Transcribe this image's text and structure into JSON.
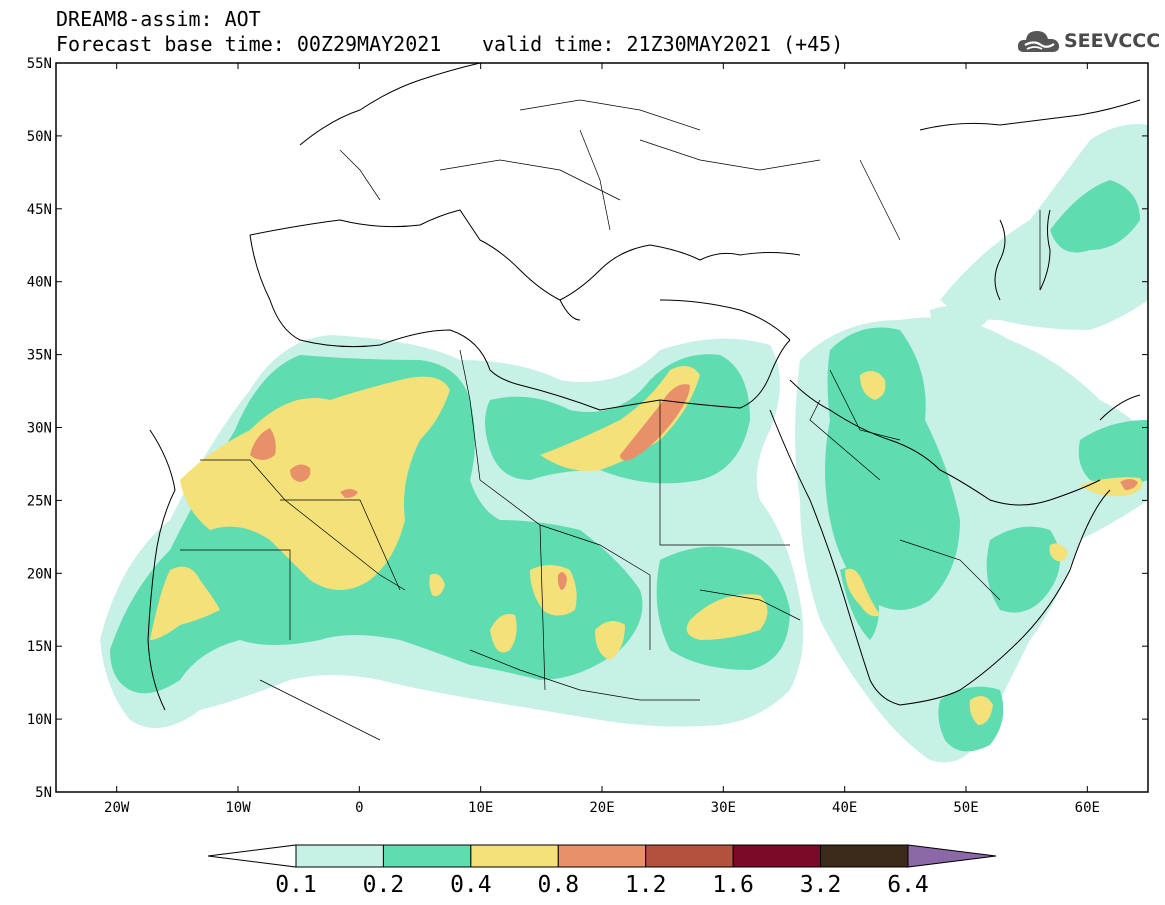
{
  "header": {
    "title": "DREAM8-assim: AOT",
    "base_time": "Forecast base time: 00Z29MAY2021",
    "valid_time": "valid time: 21Z30MAY2021 (+45)"
  },
  "logo": {
    "text": "SEEVCCC",
    "icon": "cloud-icon"
  },
  "map": {
    "lon_range": [
      -25,
      65
    ],
    "lat_range": [
      5,
      55
    ],
    "lat_labels": [
      "55N",
      "50N",
      "45N",
      "40N",
      "35N",
      "30N",
      "25N",
      "20N",
      "15N",
      "10N",
      "5N"
    ],
    "lon_labels": [
      "20W",
      "10W",
      "0",
      "10E",
      "20E",
      "30E",
      "40E",
      "50E",
      "60E"
    ]
  },
  "colorbar": {
    "levels": [
      "0.1",
      "0.2",
      "0.4",
      "0.8",
      "1.2",
      "1.6",
      "3.2",
      "6.4"
    ],
    "colors": [
      "#ffffff",
      "#c7f0e6",
      "#5fdcb0",
      "#f4e17a",
      "#e8906a",
      "#b4503e",
      "#7a0a28",
      "#3c2a1a",
      "#8c68a6"
    ]
  }
}
